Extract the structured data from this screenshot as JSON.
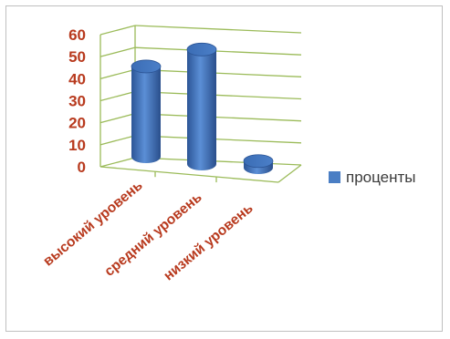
{
  "chart_data": {
    "type": "bar",
    "style": "3d-cylinder",
    "categories": [
      "высокий уровень",
      "средний уровень",
      "низкий уровень"
    ],
    "series": [
      {
        "name": "проценты",
        "values": [
          41,
          52,
          3
        ],
        "color": "#4a7ec4"
      }
    ],
    "ylim": [
      0,
      60
    ],
    "y_ticks": [
      "0",
      "10",
      "20",
      "30",
      "40",
      "50",
      "60"
    ],
    "grid": true,
    "grid_color": "#9bbb59",
    "legend_position": "right"
  }
}
